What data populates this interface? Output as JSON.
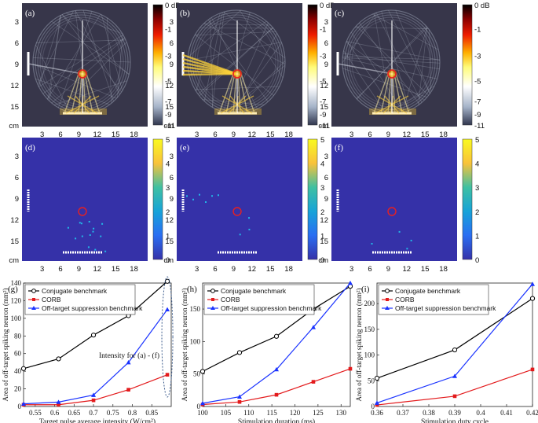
{
  "colors": {
    "map_background": "#37364a",
    "heat_background": "#3531a8",
    "conjugate": "#000000",
    "corb": "#e31a1c",
    "offtarget": "#1a33ff",
    "target_circle": "#e82020"
  },
  "panels": {
    "heatmaps": [
      {
        "label": "(a)",
        "pattern": "conjugate"
      },
      {
        "label": "(b)",
        "pattern": "corb"
      },
      {
        "label": "(c)",
        "pattern": "offtarget"
      }
    ],
    "spikemaps": [
      {
        "label": "(d)",
        "pattern": "conjugate"
      },
      {
        "label": "(e)",
        "pattern": "corb"
      },
      {
        "label": "(f)",
        "pattern": "offtarget"
      }
    ],
    "map_yticks": [
      "3",
      "6",
      "9",
      "12",
      "15"
    ],
    "map_xticks": [
      "3",
      "6",
      "9",
      "12",
      "15",
      "18"
    ],
    "unit": "cm",
    "db_colorbar_ticks": [
      "0 dB",
      "-1",
      "-3",
      "-5",
      "-7",
      "-9",
      "-11"
    ],
    "spike_colorbar_ticks": [
      "5",
      "4",
      "3",
      "2",
      "1",
      "0"
    ]
  },
  "chart_data": [
    {
      "type": "line",
      "label": "(g)",
      "xlabel": "Target pulse average intensity (W/cm²)",
      "ylabel": "Area of off-target spiking neuron (mm²)",
      "xlim": [
        0.52,
        0.9
      ],
      "ylim": [
        0,
        140
      ],
      "xticks": [
        "0.55",
        "0.6",
        "0.65",
        "0.7",
        "0.75",
        "0.8",
        "0.85"
      ],
      "yticks": [
        "0",
        "20",
        "40",
        "60",
        "80",
        "100",
        "120",
        "140"
      ],
      "x": [
        0.52,
        0.61,
        0.7,
        0.79,
        0.89
      ],
      "series": [
        {
          "name": "Conjugate benchmark",
          "values": [
            43,
            54,
            81,
            103,
            142
          ]
        },
        {
          "name": "CORB",
          "values": [
            2,
            2,
            7,
            19,
            36
          ]
        },
        {
          "name": "Off-target suppression benchmark",
          "values": [
            3,
            5,
            13,
            50,
            110
          ]
        }
      ],
      "annotation": "Intensity for (a) - (f)"
    },
    {
      "type": "line",
      "label": "(h)",
      "xlabel": "Stimulation duration (ms)",
      "ylabel": "Area of off-target spiking neuron (mm²)",
      "xlim": [
        100,
        132
      ],
      "ylim": [
        0,
        190
      ],
      "xticks": [
        "100",
        "105",
        "110",
        "115",
        "120",
        "125",
        "130"
      ],
      "yticks": [
        "0",
        "50",
        "100",
        "150"
      ],
      "x": [
        100,
        108,
        116,
        124,
        132
      ],
      "series": [
        {
          "name": "Conjugate benchmark",
          "values": [
            54,
            83,
            108,
            150,
            185
          ]
        },
        {
          "name": "CORB",
          "values": [
            3,
            7,
            18,
            38,
            58
          ]
        },
        {
          "name": "Off-target suppression benchmark",
          "values": [
            5,
            15,
            57,
            122,
            190
          ]
        }
      ]
    },
    {
      "type": "line",
      "label": "(i)",
      "xlabel": "Stimulation duty cycle",
      "ylabel": "Area of off-target spiking neuron (mm²)",
      "xlim": [
        0.36,
        0.42
      ],
      "ylim": [
        0,
        240
      ],
      "xticks": [
        "0.36",
        "0.37",
        "0.38",
        "0.39",
        "0.4",
        "0.41",
        "0.42"
      ],
      "yticks": [
        "0",
        "50",
        "100",
        "150",
        "200"
      ],
      "x": [
        0.36,
        0.39,
        0.42
      ],
      "series": [
        {
          "name": "Conjugate benchmark",
          "values": [
            55,
            110,
            210
          ]
        },
        {
          "name": "CORB",
          "values": [
            3,
            20,
            72
          ]
        },
        {
          "name": "Off-target suppression benchmark",
          "values": [
            7,
            59,
            238
          ]
        }
      ]
    }
  ]
}
